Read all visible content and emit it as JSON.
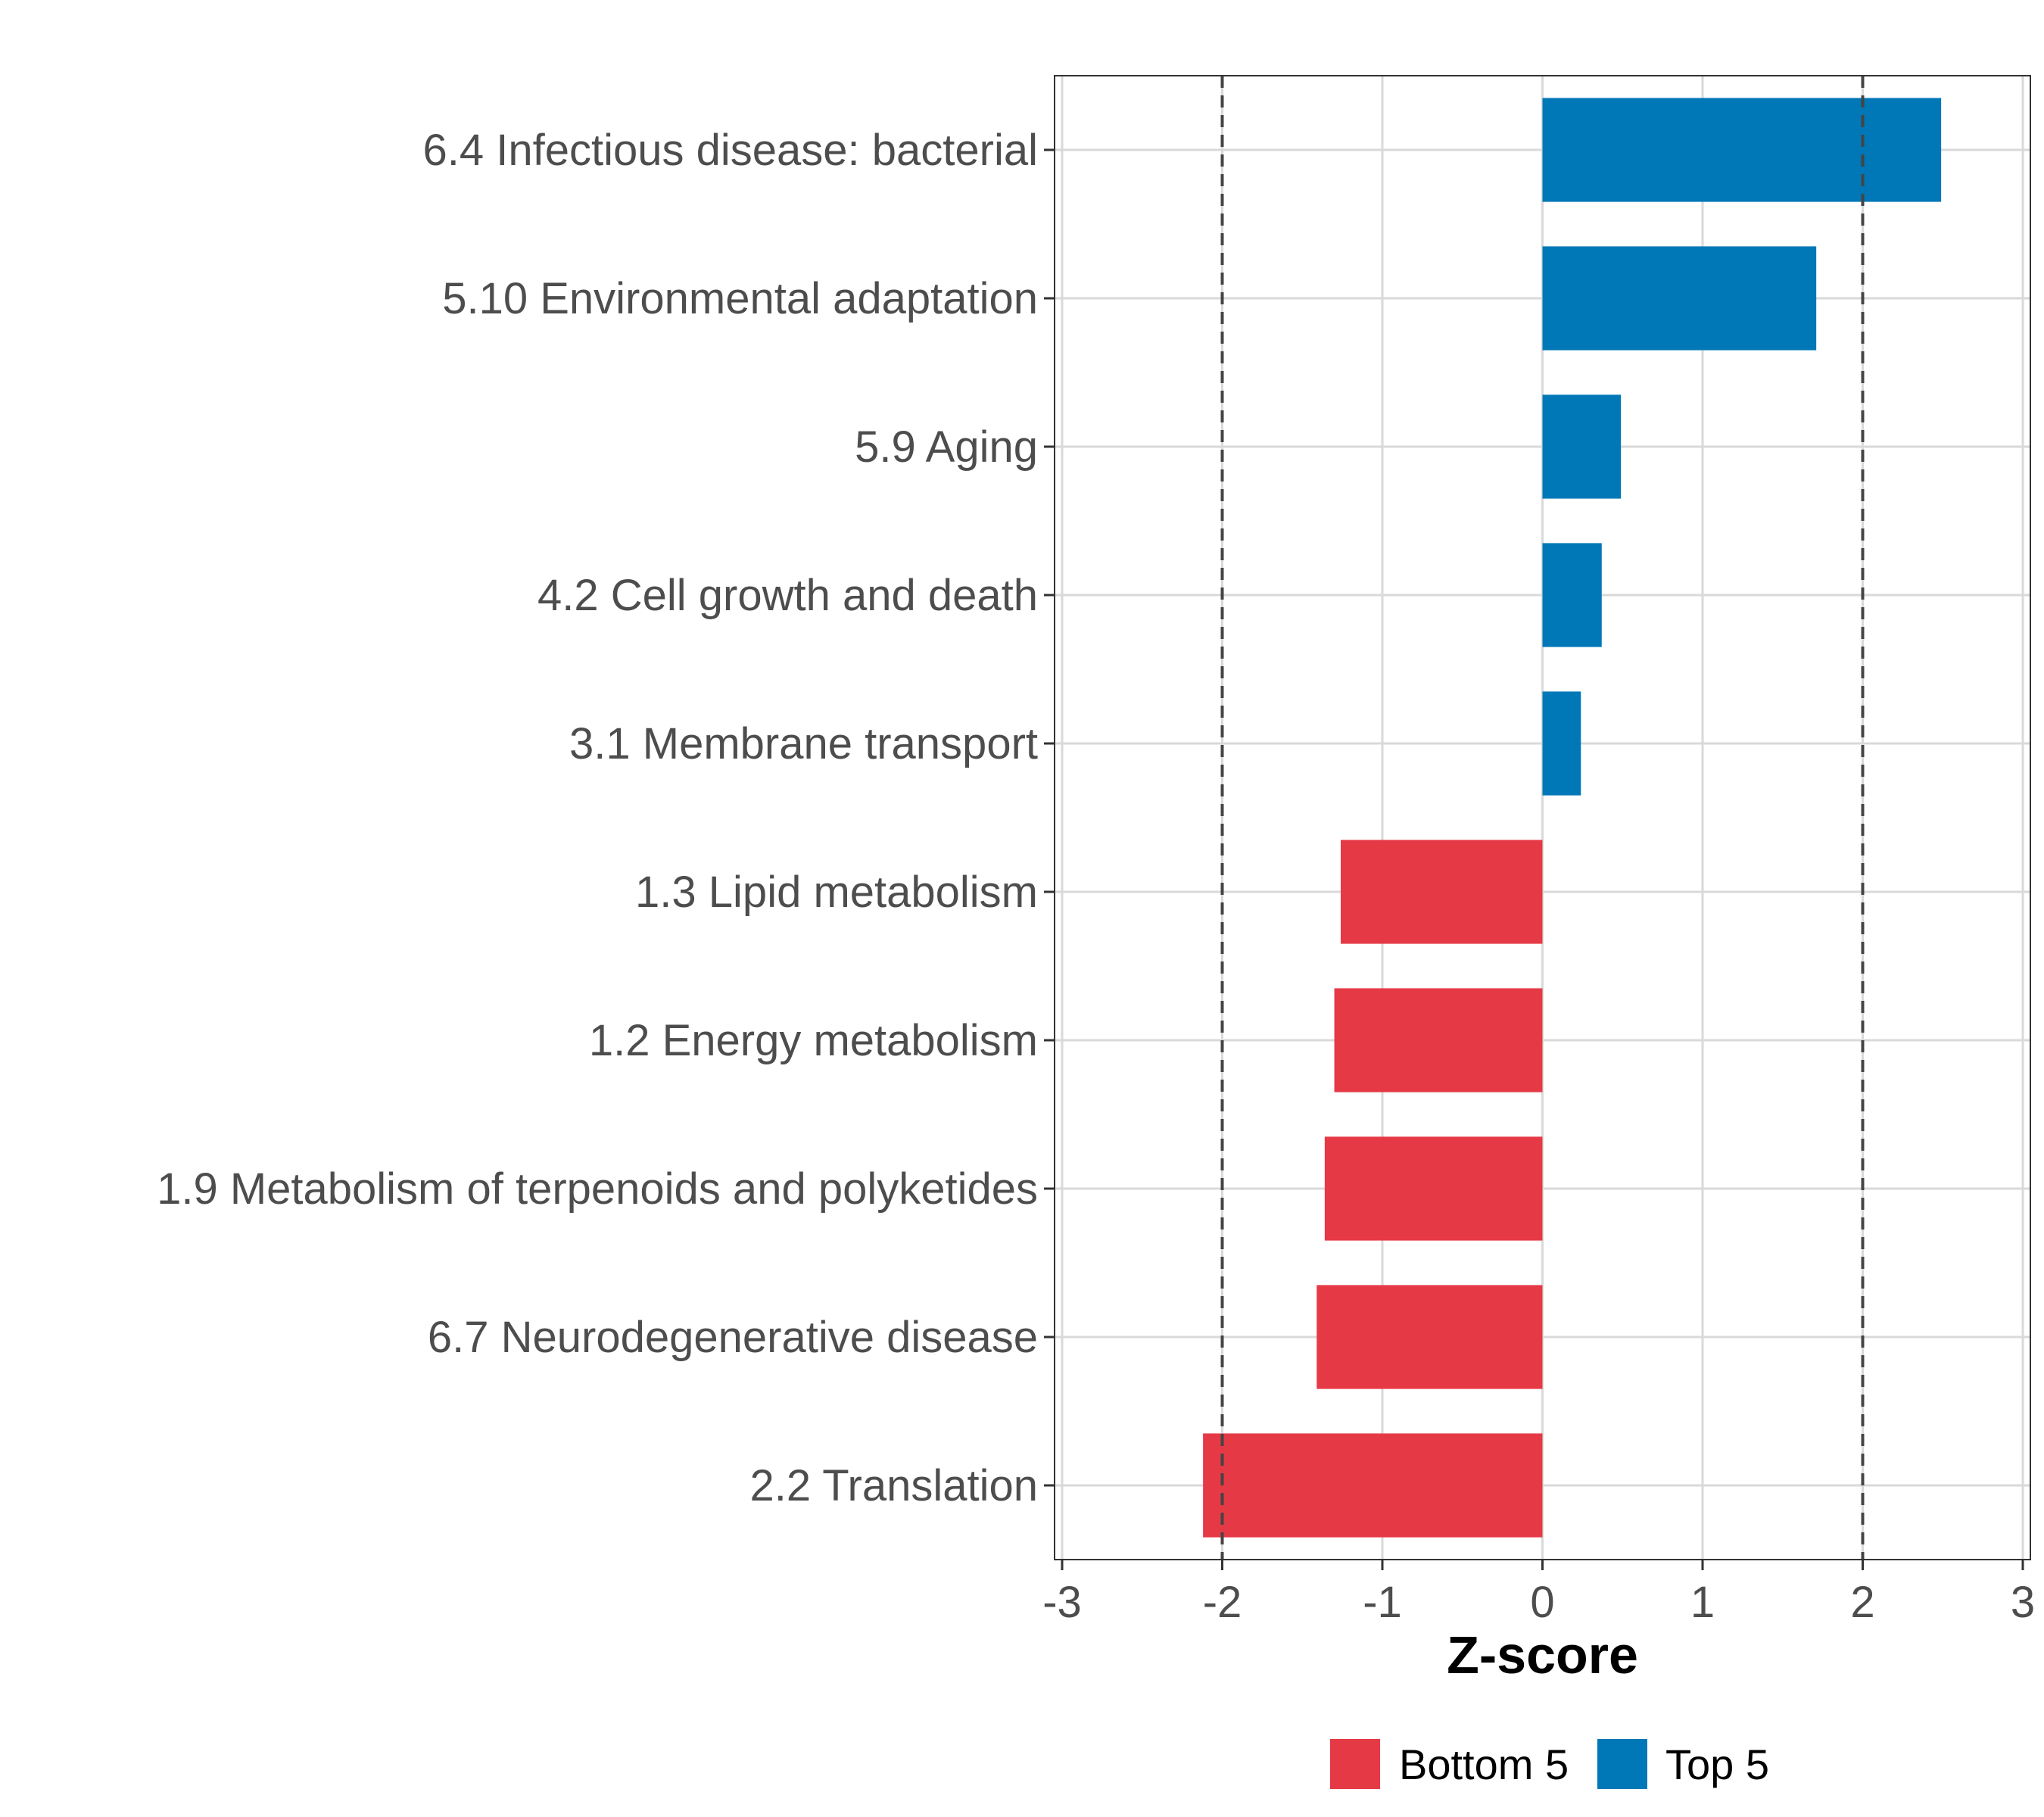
{
  "chart_data": {
    "type": "bar",
    "orientation": "horizontal",
    "title": "",
    "xlabel": "Z-score",
    "ylabel": "",
    "xlim": [
      -3,
      3
    ],
    "xticks": [
      "-3",
      "-2",
      "-1",
      "0",
      "1",
      "2",
      "3"
    ],
    "reference_lines": [
      -2,
      2
    ],
    "grid": true,
    "legend_position": "bottom",
    "categories": [
      "6.4 Infectious disease: bacterial",
      "5.10 Environmental adaptation",
      "5.9 Aging",
      "4.2 Cell growth and death",
      "3.1 Membrane transport",
      "1.3 Lipid metabolism",
      "1.2 Energy metabolism",
      "1.9 Metabolism of terpenoids and polyketides",
      "6.7 Neurodegenerative disease",
      "2.2 Translation"
    ],
    "values": [
      2.49,
      1.71,
      0.49,
      0.37,
      0.24,
      -1.26,
      -1.3,
      -1.36,
      -1.41,
      -2.12
    ],
    "groups": [
      "Top 5",
      "Top 5",
      "Top 5",
      "Top 5",
      "Top 5",
      "Bottom 5",
      "Bottom 5",
      "Bottom 5",
      "Bottom 5",
      "Bottom 5"
    ],
    "legend": [
      {
        "name": "Bottom 5",
        "color": "#e63946"
      },
      {
        "name": "Top 5",
        "color": "#0077b6"
      }
    ]
  }
}
